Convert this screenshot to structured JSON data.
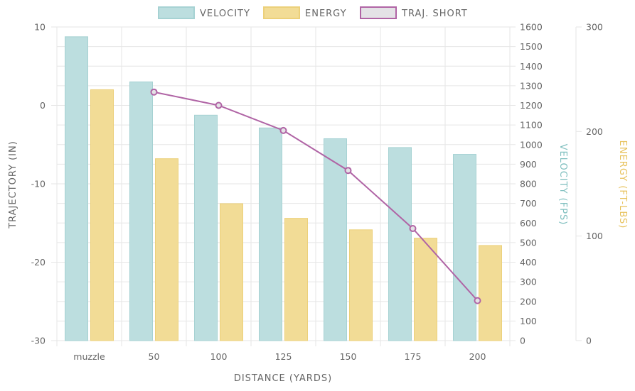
{
  "chart_data": {
    "type": "bar",
    "categories": [
      "muzzle",
      "50",
      "100",
      "125",
      "150",
      "175",
      "200"
    ],
    "series": [
      {
        "name": "VELOCITY",
        "kind": "bar",
        "axis": "velocity",
        "values": [
          1550,
          1320,
          1150,
          1085,
          1030,
          985,
          950
        ]
      },
      {
        "name": "ENERGY",
        "kind": "bar",
        "axis": "energy",
        "values": [
          240,
          174,
          131,
          117,
          106,
          98,
          91
        ]
      },
      {
        "name": "TRAJ. SHORT",
        "kind": "line",
        "axis": "trajectory",
        "values": [
          null,
          1.7,
          0,
          -3.2,
          -8.3,
          -15.7,
          -24.9
        ]
      }
    ],
    "axes": {
      "trajectory": {
        "title": "TRAJECTORY (IN)",
        "min": -30,
        "max": 10,
        "ticks": [
          "10",
          "0",
          "-10",
          "-20",
          "-30"
        ]
      },
      "velocity": {
        "title": "VELOCITY (FPS)",
        "min": 0,
        "max": 1600,
        "ticks": [
          "1600",
          "1500",
          "1400",
          "1300",
          "1200",
          "1100",
          "1000",
          "900",
          "800",
          "700",
          "600",
          "500",
          "400",
          "300",
          "200",
          "100",
          "0"
        ]
      },
      "energy": {
        "title": "ENERGY (FT-LBS)",
        "min": 0,
        "max": 300,
        "ticks": [
          "300",
          "200",
          "100",
          "0"
        ]
      }
    },
    "xlabel": "DISTANCE (YARDS)",
    "legend_position": "top",
    "grid": true,
    "colors": {
      "velocity_fill": "#bcdedf",
      "velocity_stroke": "#a6d2d3",
      "energy_fill": "#f2dc96",
      "energy_stroke": "#ecd07a",
      "traj_line": "#b064a5",
      "traj_box": "#e4e2e6",
      "velocity_title": "#7fbfbf",
      "energy_title": "#e7c25c",
      "text": "#666666",
      "grid": "#e6e6e6"
    }
  }
}
